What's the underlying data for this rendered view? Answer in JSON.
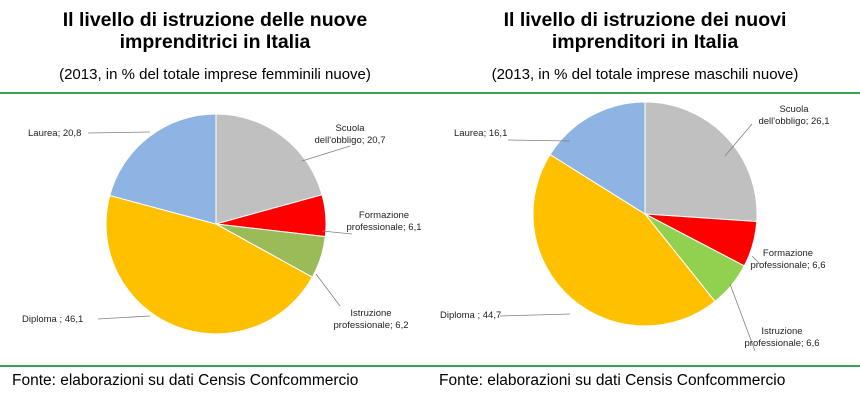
{
  "source_text": "Fonte: elaborazioni su dati Censis Confcommercio",
  "chart_data": [
    {
      "type": "pie",
      "title_line1": "Il livello di istruzione delle nuove",
      "title_line2": "imprenditrici in Italia",
      "subtitle": "(2013, in % del totale imprese femminili nuove)",
      "slices": [
        {
          "label_lines": [
            "Scuola",
            "dell'obbligo; 20,7"
          ],
          "value": 20.7,
          "color": "#c0c0c0"
        },
        {
          "label_lines": [
            "Formazione",
            "professionale; 6,1"
          ],
          "value": 6.1,
          "color": "#ff0000"
        },
        {
          "label_lines": [
            "Istruzione",
            "professionale; 6,2"
          ],
          "value": 6.2,
          "color": "#9bbb59"
        },
        {
          "label_lines": [
            "Diploma ; 46,1"
          ],
          "value": 46.1,
          "color": "#ffc000"
        },
        {
          "label_lines": [
            "Laurea; 20,8"
          ],
          "value": 20.8,
          "color": "#8db4e2"
        }
      ]
    },
    {
      "type": "pie",
      "title_line1": "Il livello di istruzione dei nuovi",
      "title_line2": "imprenditori in Italia",
      "subtitle": "(2013, in % del totale imprese maschili nuove)",
      "slices": [
        {
          "label_lines": [
            "Scuola",
            "dell'obbligo; 26,1"
          ],
          "value": 26.1,
          "color": "#c0c0c0"
        },
        {
          "label_lines": [
            "Formazione",
            "professionale; 6,6"
          ],
          "value": 6.6,
          "color": "#ff0000"
        },
        {
          "label_lines": [
            "Istruzione",
            "professionale; 6,6"
          ],
          "value": 6.6,
          "color": "#92d050"
        },
        {
          "label_lines": [
            "Diploma ; 44,7"
          ],
          "value": 44.7,
          "color": "#ffc000"
        },
        {
          "label_lines": [
            "Laurea; 16,1"
          ],
          "value": 16.1,
          "color": "#8db4e2"
        }
      ]
    }
  ]
}
